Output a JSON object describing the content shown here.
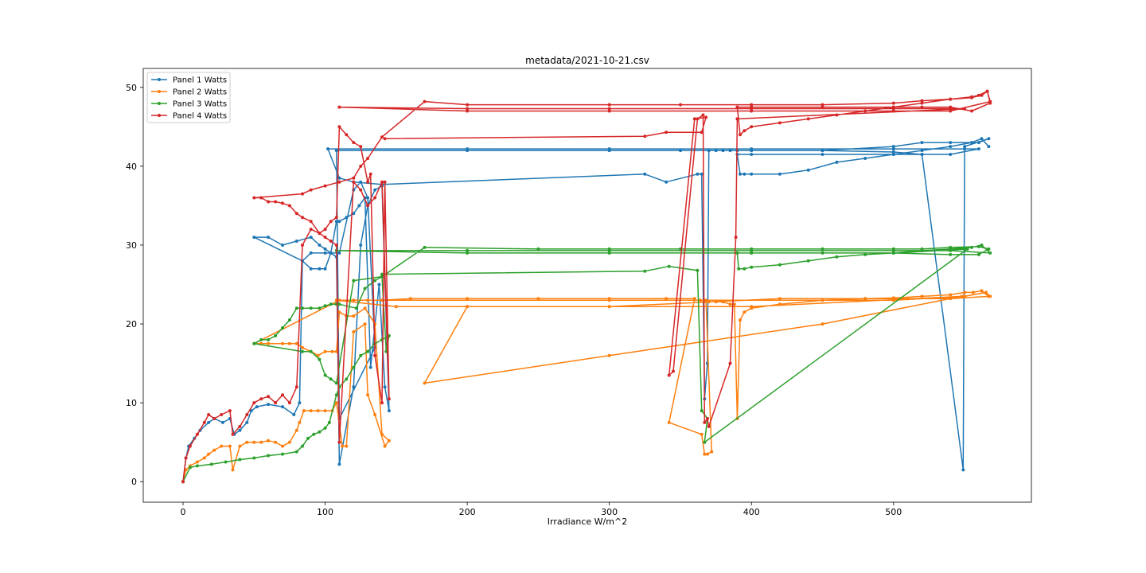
{
  "chart_data": {
    "type": "line",
    "title": "metadata/2021-10-21.csv",
    "xlabel": "Irradiance W/m^2",
    "ylabel": "",
    "xlim": [
      -28,
      597
    ],
    "ylim": [
      -2.6,
      52.4
    ],
    "xticks": [
      0,
      100,
      200,
      300,
      400,
      500
    ],
    "yticks": [
      0,
      10,
      20,
      30,
      40,
      50
    ],
    "grid": false,
    "legend_position": "upper-left",
    "marker": "dot",
    "series": [
      {
        "name": "Panel 1 Watts",
        "color": "#1f77b4",
        "x": [
          0,
          2,
          4,
          8,
          12,
          18,
          22,
          28,
          33,
          36,
          40,
          45,
          48,
          52,
          60,
          70,
          78,
          82,
          84,
          90,
          96,
          100,
          104,
          108,
          110,
          115,
          120,
          124,
          128,
          132,
          138,
          142,
          145,
          140,
          135,
          130,
          125,
          120,
          110,
          108,
          104,
          100,
          96,
          90,
          80,
          70,
          60,
          50,
          84,
          90,
          100,
          110,
          120,
          125,
          130,
          135,
          110,
          108,
          200,
          300,
          350,
          400,
          450,
          500,
          520,
          540,
          560,
          567,
          550,
          549,
          520,
          500,
          450,
          400,
          390,
          385,
          380,
          375,
          370,
          369,
          367,
          365,
          362,
          340,
          325,
          140,
          120,
          110,
          102,
          200,
          300,
          400,
          500,
          550,
          560,
          540,
          520,
          500,
          450,
          400,
          390,
          392,
          395,
          400,
          420,
          440,
          460,
          480,
          500,
          520,
          540,
          555,
          562,
          567
        ],
        "y": [
          0,
          3,
          4.5,
          5.5,
          6.5,
          7.5,
          8,
          7.5,
          8,
          6,
          6.5,
          7.5,
          9,
          9.5,
          9.8,
          9.5,
          8.5,
          10,
          28,
          27,
          27,
          27,
          29,
          33,
          33,
          33.5,
          34,
          35,
          36,
          14.5,
          25,
          12,
          9,
          37.5,
          37,
          35,
          30,
          12,
          2.2,
          28.5,
          29,
          29.5,
          30,
          31,
          30.5,
          30,
          31,
          31,
          28,
          29,
          29,
          29,
          37,
          38,
          36,
          17,
          8,
          42,
          42,
          42,
          42,
          42,
          42,
          42.5,
          43,
          43,
          43,
          43.5,
          42.5,
          1.5,
          41.5,
          41.8,
          42,
          42,
          42,
          42,
          42,
          42,
          42,
          15,
          10.5,
          39,
          39,
          38,
          39,
          37.7,
          38,
          38.5,
          42.2,
          42.2,
          42.2,
          42.2,
          42.2,
          42.2,
          42.2,
          41.5,
          41.5,
          41.5,
          41.5,
          41.5,
          41.5,
          39,
          39,
          39,
          39,
          39.5,
          40.5,
          41,
          41.5,
          42,
          42.5,
          43,
          43.5,
          42.5
        ]
      },
      {
        "name": "Panel 2 Watts",
        "color": "#ff7f0e",
        "x": [
          0,
          2,
          5,
          10,
          15,
          18,
          22,
          27,
          33,
          35,
          40,
          45,
          50,
          55,
          60,
          65,
          70,
          75,
          80,
          82,
          85,
          90,
          95,
          100,
          105,
          108,
          112,
          115,
          120,
          128,
          130,
          135,
          142,
          145,
          140,
          135,
          128,
          120,
          115,
          110,
          108,
          105,
          100,
          95,
          90,
          84,
          80,
          75,
          70,
          60,
          55,
          50,
          110,
          120,
          130,
          140,
          160,
          200,
          250,
          300,
          340,
          360,
          342,
          365,
          367,
          369,
          372,
          368,
          364,
          370,
          375,
          380,
          385,
          388,
          390,
          392,
          395,
          400,
          420,
          450,
          480,
          500,
          520,
          540,
          550,
          556,
          562,
          567,
          540,
          510,
          480,
          420,
          300,
          200,
          170,
          300,
          450,
          548,
          400,
          300,
          200,
          150,
          108,
          300,
          500,
          550,
          565,
          568
        ],
        "y": [
          0,
          1.5,
          2,
          2.5,
          3,
          3.5,
          4,
          4.5,
          4.5,
          1.5,
          4.5,
          5,
          5,
          5,
          5.2,
          5,
          4.5,
          5,
          6.5,
          7.5,
          9,
          9,
          9,
          9,
          9,
          10,
          4.5,
          4.5,
          19,
          20,
          11,
          8.5,
          4.5,
          5.2,
          6,
          20,
          22,
          21,
          21,
          21.5,
          16.5,
          16.5,
          16.5,
          16,
          16.5,
          17,
          17.5,
          17.5,
          17.5,
          17.5,
          17.5,
          17.5,
          23,
          23,
          23,
          23,
          23.2,
          23.2,
          23.2,
          23.2,
          23.2,
          23.2,
          7.5,
          6,
          3.5,
          3.5,
          3.8,
          23,
          23,
          22.8,
          22.8,
          22.8,
          22.5,
          22.5,
          8,
          20.5,
          21.5,
          22,
          22.5,
          23,
          23.2,
          23.3,
          23.5,
          23.7,
          24,
          24,
          24.2,
          23.5,
          23.2,
          23.2,
          23.2,
          23.2,
          22.2,
          22.2,
          12.5,
          16,
          20,
          23.5,
          22.2,
          22.2,
          22.2,
          22.2,
          23,
          23,
          23,
          23.5,
          24,
          23.5
        ]
      },
      {
        "name": "Panel 3 Watts",
        "color": "#2ca02c",
        "x": [
          0,
          5,
          10,
          20,
          30,
          40,
          50,
          60,
          70,
          80,
          84,
          88,
          92,
          96,
          100,
          103,
          108,
          110,
          115,
          120,
          125,
          130,
          135,
          140,
          145,
          143,
          140,
          135,
          128,
          122,
          110,
          108,
          104,
          100,
          96,
          90,
          84,
          80,
          75,
          70,
          65,
          60,
          55,
          50,
          84,
          90,
          96,
          100,
          104,
          108,
          120,
          140,
          170,
          250,
          300,
          350,
          400,
          450,
          500,
          520,
          540,
          560,
          567,
          560,
          540,
          500,
          450,
          400,
          390,
          391,
          395,
          400,
          420,
          440,
          460,
          480,
          500,
          520,
          540,
          555,
          562,
          568,
          540,
          500,
          400,
          300,
          200,
          108,
          200,
          300,
          400,
          500,
          552,
          367,
          369,
          365,
          362,
          342,
          325,
          140
        ],
        "y": [
          0,
          1.8,
          2,
          2.2,
          2.5,
          2.8,
          3,
          3.3,
          3.5,
          3.8,
          4.5,
          5.5,
          6,
          6.3,
          6.8,
          7.5,
          11,
          12,
          13,
          14.5,
          16,
          16.5,
          17.5,
          18,
          18.5,
          16.5,
          26,
          25.5,
          24.5,
          22,
          22.5,
          22.5,
          22.5,
          22.3,
          22,
          22,
          22,
          22,
          20.5,
          19.5,
          18.5,
          18,
          18,
          17.5,
          16.5,
          16.5,
          15.5,
          13.5,
          13,
          12.5,
          25.5,
          26,
          29.7,
          29.5,
          29.5,
          29.5,
          29.5,
          29.5,
          29.5,
          29.5,
          29.7,
          29.8,
          29.5,
          28.8,
          28.8,
          29,
          29,
          29,
          29,
          27,
          27,
          27.2,
          27.5,
          28,
          28.5,
          28.8,
          29,
          29.3,
          29.5,
          29.7,
          30,
          29,
          29.3,
          29.3,
          29.3,
          29.3,
          29.3,
          29.3,
          29,
          29,
          29,
          29,
          29.5,
          5,
          8,
          9,
          26.8,
          27.3,
          26.7,
          26.3
        ]
      },
      {
        "name": "Panel 4 Watts",
        "color": "#d62728",
        "x": [
          0,
          2,
          5,
          10,
          15,
          18,
          22,
          27,
          33,
          35,
          40,
          45,
          50,
          55,
          60,
          65,
          70,
          75,
          80,
          84,
          90,
          96,
          100,
          104,
          108,
          110,
          115,
          120,
          125,
          130,
          132,
          135,
          140,
          142,
          145,
          140,
          135,
          130,
          125,
          120,
          110,
          108,
          104,
          100,
          96,
          90,
          84,
          80,
          75,
          70,
          65,
          60,
          55,
          50,
          84,
          90,
          100,
          110,
          120,
          125,
          130,
          140,
          170,
          200,
          300,
          350,
          400,
          450,
          500,
          520,
          540,
          555,
          562,
          566,
          568,
          555,
          540,
          520,
          500,
          450,
          400,
          390,
          392,
          395,
          400,
          420,
          440,
          460,
          480,
          500,
          520,
          540,
          555,
          560,
          566,
          568,
          540,
          500,
          400,
          300,
          200,
          110,
          200,
          300,
          400,
          500,
          550,
          390,
          389,
          385,
          370,
          369,
          367,
          366,
          362,
          345,
          342,
          360,
          368,
          365,
          340,
          325,
          142
        ],
        "y": [
          0,
          3,
          4.5,
          6,
          7.5,
          8.5,
          8,
          8.5,
          9,
          6,
          7,
          8.5,
          10,
          10.5,
          10.8,
          10,
          11,
          10,
          12,
          30,
          32,
          31.5,
          32,
          33,
          33.5,
          45,
          44,
          43,
          42.5,
          38,
          39,
          16,
          10,
          38,
          10.5,
          38,
          36,
          35,
          37,
          38,
          5,
          30,
          30.5,
          31,
          31.5,
          33,
          33.5,
          34,
          35,
          35.3,
          35.5,
          35.5,
          36,
          36,
          36.5,
          37,
          37.5,
          38,
          38.5,
          40,
          41,
          43.7,
          48.2,
          47.8,
          47.8,
          47.8,
          47.8,
          47.8,
          48,
          48.3,
          48.5,
          48.7,
          49,
          49.5,
          48,
          47,
          47.5,
          47.5,
          47.5,
          47.5,
          47.5,
          47.5,
          44,
          44.5,
          45,
          45.5,
          46,
          46.5,
          47,
          47.5,
          48,
          48.5,
          48.8,
          49,
          49.5,
          48.2,
          47,
          47,
          47,
          47,
          47,
          47.5,
          47.3,
          47.3,
          47.3,
          47.3,
          47.3,
          46,
          31,
          15,
          7,
          8,
          7.5,
          46.5,
          46,
          14,
          13.5,
          46,
          46.2,
          44.3,
          44.3,
          43.8,
          43.5
        ]
      }
    ]
  }
}
